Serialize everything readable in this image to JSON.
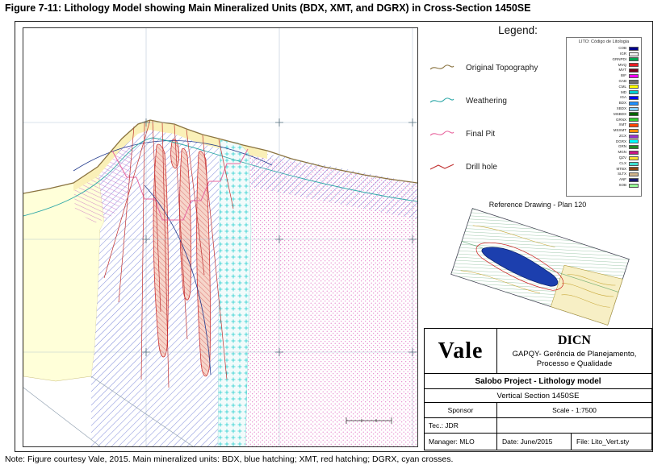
{
  "figure": {
    "title": "Figure 7-11: Lithology Model showing Main Mineralized Units (BDX, XMT, and DGRX) in Cross-Section 1450SE",
    "note": "Note:  Figure courtesy Vale, 2015.  Main mineralized units: BDX, blue hatching; XMT, red hatching; DGRX, cyan crosses."
  },
  "legend": {
    "heading": "Legend:",
    "items": [
      {
        "label": "Original Topography",
        "color": "#8a7340"
      },
      {
        "label": "Weathering",
        "color": "#2fa8a8"
      },
      {
        "label": "Final Pit",
        "color": "#e8679f"
      },
      {
        "label": "Drill hole",
        "color": "#c03030"
      }
    ]
  },
  "lito_legend": {
    "title": "LITO: Código de Litologia",
    "entries": [
      {
        "code": "COB",
        "color": "#00008b"
      },
      {
        "code": "IGR",
        "color": "#f0f0f0"
      },
      {
        "code": "GRNPDI",
        "color": "#00a550"
      },
      {
        "code": "MVQ",
        "color": "#e81c23"
      },
      {
        "code": "MVT",
        "color": "#7b001c"
      },
      {
        "code": "BIF",
        "color": "#ff00ff"
      },
      {
        "code": "GAB",
        "color": "#6e6e6e"
      },
      {
        "code": "CML",
        "color": "#ffff00"
      },
      {
        "code": "MD",
        "color": "#00ced1"
      },
      {
        "code": "IGA",
        "color": "#0000ff"
      },
      {
        "code": "BDX",
        "color": "#1e90ff"
      },
      {
        "code": "XBDX",
        "color": "#87cefa"
      },
      {
        "code": "MSBDX",
        "color": "#006400"
      },
      {
        "code": "GRNX",
        "color": "#32cd32"
      },
      {
        "code": "XMT",
        "color": "#ff4500"
      },
      {
        "code": "MSXMT",
        "color": "#ff8c00"
      },
      {
        "code": "ZCX",
        "color": "#9932cc"
      },
      {
        "code": "DGRX",
        "color": "#00ffff"
      },
      {
        "code": "GRN",
        "color": "#228b22"
      },
      {
        "code": "MGN",
        "color": "#c71585"
      },
      {
        "code": "QZV",
        "color": "#ffe135"
      },
      {
        "code": "CLX",
        "color": "#40e0d0"
      },
      {
        "code": "MTBX",
        "color": "#8b4513"
      },
      {
        "code": "SLTX",
        "color": "#d2b48c"
      },
      {
        "code": "ANF",
        "color": "#191970"
      },
      {
        "code": "SOB",
        "color": "#98fb98"
      }
    ]
  },
  "reference": {
    "label": "Reference Drawing - Plan 120"
  },
  "title_block": {
    "company": "Vale",
    "department": "DICN",
    "department_sub": "GAPQY- Gerência de Planejamento, Processo e Qualidade",
    "project": "Salobo Project - Lithology model",
    "section": "Vertical Section 1450SE",
    "sponsor": "Sponsor",
    "scale": "Scale - 1:7500",
    "tec": "Tec.: JDR",
    "manager": "Manager: MLO",
    "date": "Date: June/2015",
    "file": "File: Lito_Vert.sty"
  },
  "colors": {
    "topo_line": "#8a7340",
    "weathering_line": "#2fa8a8",
    "final_pit_line": "#e8679f",
    "drill_hole_line": "#c03030",
    "bdx_hatch": "#4656c8",
    "xmt_hatch": "#cc3333",
    "xmt_fill": "#f6d5ca",
    "dgrx_cross": "#2ad0d0",
    "pink_stipple": "#e06ac0",
    "purple_hatch": "#c054c0",
    "grid_line": "#9fb6c9",
    "surface_yellow": "#faf0b8",
    "left_yellow": "#ffffd9",
    "plan_hatch_green": "#2d8a4a",
    "plan_blob_blue": "#1c3fae"
  }
}
